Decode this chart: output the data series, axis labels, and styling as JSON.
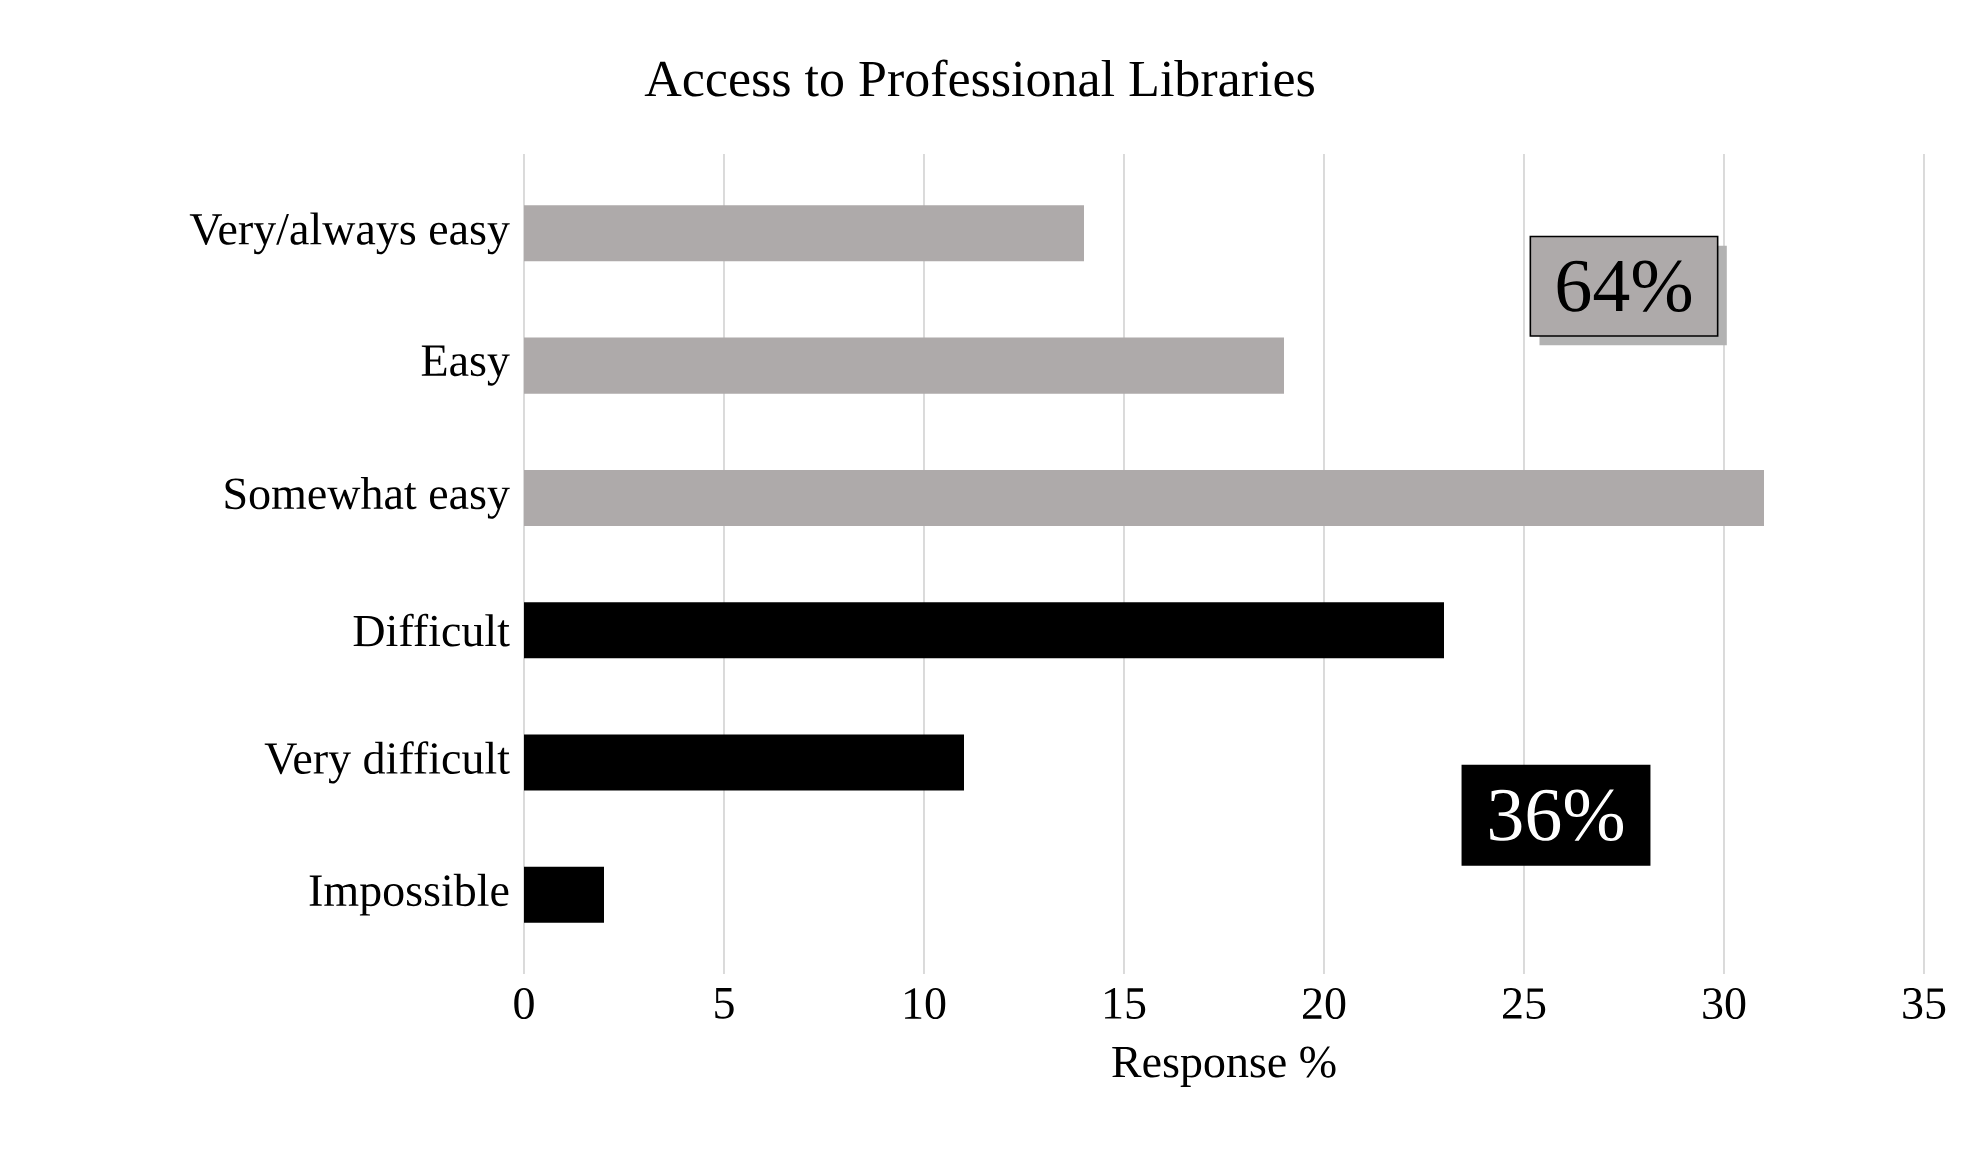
{
  "chart_data": {
    "type": "bar",
    "orientation": "horizontal",
    "title": "Access to Professional Libraries",
    "xlabel": "Response %",
    "categories": [
      "Very/always easy",
      "Easy",
      "Somewhat easy",
      "Difficult",
      "Very difficult",
      "Impossible"
    ],
    "values": [
      14,
      19,
      31,
      23,
      11,
      2
    ],
    "colors": [
      "#aeaaaa",
      "#aeaaaa",
      "#aeaaaa",
      "#000000",
      "#000000",
      "#000000"
    ],
    "xlim": [
      0,
      35
    ],
    "xticks": [
      0,
      5,
      10,
      15,
      20,
      25,
      30,
      35
    ],
    "grid": "x",
    "annotations": [
      "64%",
      "36%"
    ]
  }
}
